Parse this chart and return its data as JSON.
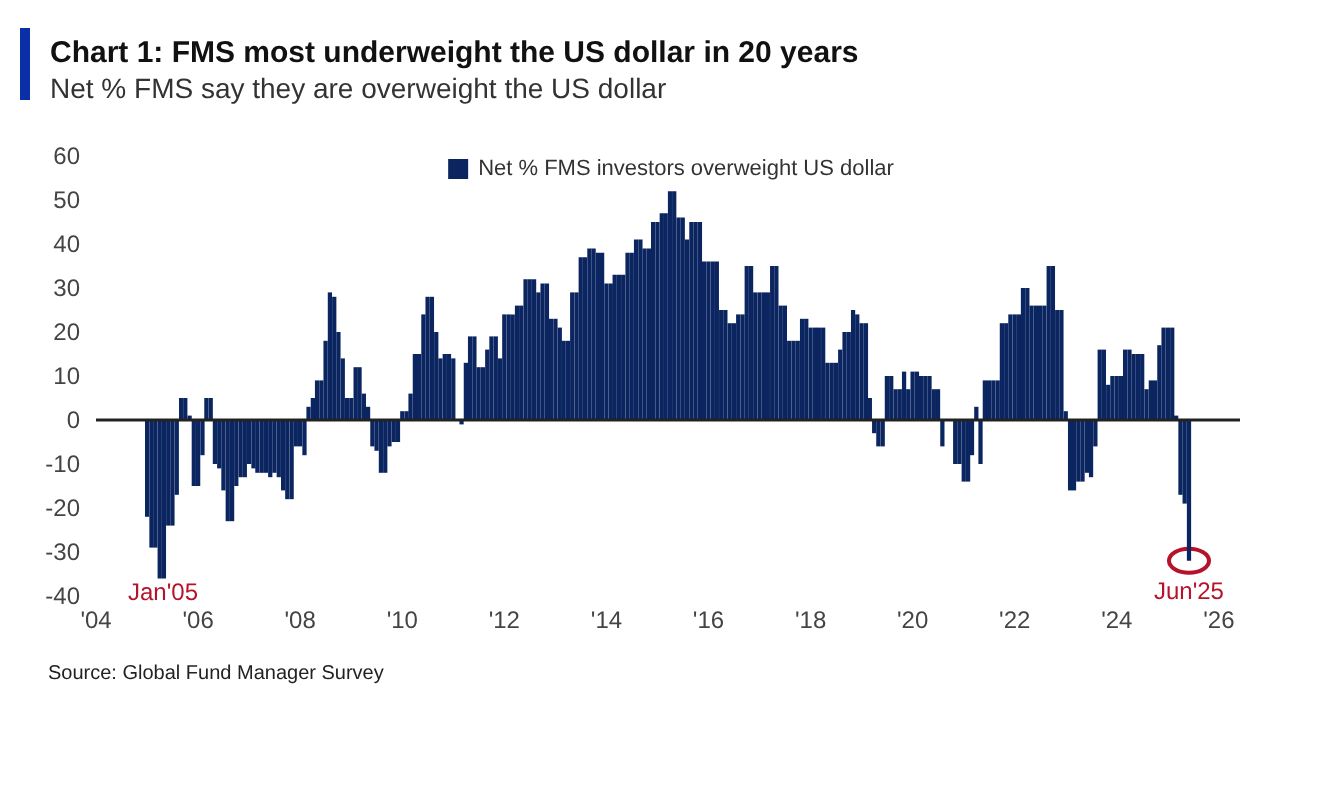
{
  "chart_data": {
    "type": "bar",
    "title": "Chart 1: FMS most underweight the US dollar in 20 years",
    "subtitle": "Net % FMS say they are overweight the US dollar",
    "x": [
      "2005-01",
      "2005-02",
      "2005-03",
      "2005-04",
      "2005-05",
      "2005-06",
      "2005-07",
      "2005-08",
      "2005-09",
      "2005-10",
      "2005-11",
      "2005-12",
      "2006-01",
      "2006-02",
      "2006-03",
      "2006-04",
      "2006-05",
      "2006-06",
      "2006-07",
      "2006-08",
      "2006-09",
      "2006-10",
      "2006-11",
      "2006-12",
      "2007-01",
      "2007-02",
      "2007-03",
      "2007-04",
      "2007-05",
      "2007-06",
      "2007-07",
      "2007-08",
      "2007-09",
      "2007-10",
      "2007-11",
      "2007-12",
      "2008-01",
      "2008-02",
      "2008-03",
      "2008-04",
      "2008-05",
      "2008-06",
      "2008-07",
      "2008-08",
      "2008-09",
      "2008-10",
      "2008-11",
      "2008-12",
      "2009-01",
      "2009-02",
      "2009-03",
      "2009-04",
      "2009-05",
      "2009-06",
      "2009-07",
      "2009-08",
      "2009-09",
      "2009-10",
      "2009-11",
      "2009-12",
      "2010-01",
      "2010-02",
      "2010-03",
      "2010-04",
      "2010-05",
      "2010-06",
      "2010-07",
      "2010-08",
      "2010-09",
      "2010-10",
      "2010-11",
      "2010-12",
      "2011-01",
      "2011-02",
      "2011-03",
      "2011-04",
      "2011-05",
      "2011-06",
      "2011-07",
      "2011-08",
      "2011-09",
      "2011-10",
      "2011-11",
      "2011-12",
      "2012-01",
      "2012-02",
      "2012-03",
      "2012-04",
      "2012-05",
      "2012-06",
      "2012-07",
      "2012-08",
      "2012-09",
      "2012-10",
      "2012-11",
      "2012-12",
      "2013-01",
      "2013-02",
      "2013-03",
      "2013-04",
      "2013-05",
      "2013-06",
      "2013-07",
      "2013-08",
      "2013-09",
      "2013-10",
      "2013-11",
      "2013-12",
      "2014-01",
      "2014-02",
      "2014-03",
      "2014-04",
      "2014-05",
      "2014-06",
      "2014-07",
      "2014-08",
      "2014-09",
      "2014-10",
      "2014-11",
      "2014-12",
      "2015-01",
      "2015-02",
      "2015-03",
      "2015-04",
      "2015-05",
      "2015-06",
      "2015-07",
      "2015-08",
      "2015-09",
      "2015-10",
      "2015-11",
      "2015-12",
      "2016-01",
      "2016-02",
      "2016-03",
      "2016-04",
      "2016-05",
      "2016-06",
      "2016-07",
      "2016-08",
      "2016-09",
      "2016-10",
      "2016-11",
      "2016-12",
      "2017-01",
      "2017-02",
      "2017-03",
      "2017-04",
      "2017-05",
      "2017-06",
      "2017-07",
      "2017-08",
      "2017-09",
      "2017-10",
      "2017-11",
      "2017-12",
      "2018-01",
      "2018-02",
      "2018-03",
      "2018-04",
      "2018-05",
      "2018-06",
      "2018-07",
      "2018-08",
      "2018-09",
      "2018-10",
      "2018-11",
      "2018-12",
      "2019-01",
      "2019-02",
      "2019-03",
      "2019-04",
      "2019-05",
      "2019-06",
      "2019-07",
      "2019-08",
      "2019-09",
      "2019-10",
      "2019-11",
      "2019-12",
      "2020-01",
      "2020-02",
      "2020-03",
      "2020-04",
      "2020-05",
      "2020-06",
      "2020-07",
      "2020-08",
      "2020-09",
      "2020-10",
      "2020-11",
      "2020-12",
      "2021-01",
      "2021-02",
      "2021-03",
      "2021-04",
      "2021-05",
      "2021-06",
      "2021-07",
      "2021-08",
      "2021-09",
      "2021-10",
      "2021-11",
      "2021-12",
      "2022-01",
      "2022-02",
      "2022-03",
      "2022-04",
      "2022-05",
      "2022-06",
      "2022-07",
      "2022-08",
      "2022-09",
      "2022-10",
      "2022-11",
      "2022-12",
      "2023-01",
      "2023-02",
      "2023-03",
      "2023-04",
      "2023-05",
      "2023-06",
      "2023-07",
      "2023-08",
      "2023-09",
      "2023-10",
      "2023-11",
      "2023-12",
      "2024-01",
      "2024-02",
      "2024-03",
      "2024-04",
      "2024-05",
      "2024-06",
      "2024-07",
      "2024-08",
      "2024-09",
      "2024-10",
      "2024-11",
      "2024-12",
      "2025-01",
      "2025-02",
      "2025-03",
      "2025-04",
      "2025-05",
      "2025-06"
    ],
    "series": [
      {
        "name": "Net % FMS investors overweight US dollar",
        "color": "#0b2560",
        "values": [
          -22,
          -29,
          -29,
          -36,
          -36,
          -24,
          -24,
          -17,
          5,
          5,
          1,
          -15,
          -15,
          -8,
          5,
          5,
          -10,
          -11,
          -16,
          -23,
          -23,
          -15,
          -13,
          -13,
          -10,
          -11,
          -12,
          -12,
          -12,
          -13,
          -12,
          -13,
          -16,
          -18,
          -18,
          -6,
          -6,
          -8,
          3,
          5,
          9,
          9,
          18,
          29,
          28,
          20,
          14,
          5,
          5,
          12,
          12,
          6,
          3,
          -6,
          -7,
          -12,
          -12,
          -6,
          -5,
          -5,
          2,
          2,
          6,
          15,
          15,
          24,
          28,
          28,
          20,
          14,
          15,
          15,
          14,
          null,
          -1,
          13,
          19,
          19,
          12,
          12,
          16,
          19,
          19,
          14,
          24,
          24,
          24,
          26,
          26,
          32,
          32,
          32,
          29,
          31,
          31,
          23,
          23,
          21,
          18,
          18,
          29,
          29,
          37,
          37,
          39,
          39,
          38,
          38,
          31,
          31,
          33,
          33,
          33,
          38,
          38,
          41,
          41,
          39,
          39,
          45,
          45,
          47,
          47,
          52,
          52,
          46,
          46,
          41,
          45,
          45,
          45,
          36,
          36,
          36,
          36,
          25,
          25,
          22,
          22,
          24,
          24,
          35,
          35,
          29,
          29,
          29,
          29,
          35,
          35,
          26,
          26,
          18,
          18,
          18,
          23,
          23,
          21,
          21,
          21,
          21,
          13,
          13,
          13,
          16,
          20,
          20,
          25,
          24,
          22,
          22,
          5,
          -3,
          -6,
          -6,
          10,
          10,
          7,
          7,
          11,
          7,
          11,
          11,
          10,
          10,
          10,
          7,
          7,
          -6,
          null,
          null,
          -10,
          -10,
          -14,
          -14,
          -8,
          3,
          -10,
          9,
          9,
          9,
          9,
          22,
          22,
          24,
          24,
          24,
          30,
          30,
          26,
          26,
          26,
          26,
          35,
          35,
          25,
          25,
          2,
          -16,
          -16,
          -14,
          -14,
          -12,
          -13,
          -6,
          16,
          16,
          8,
          10,
          10,
          10,
          16,
          16,
          15,
          15,
          15,
          7,
          9,
          9,
          17,
          21,
          21,
          21,
          1,
          -17,
          -19,
          -32
        ]
      }
    ],
    "xlim": [
      "2004",
      "2026-06"
    ],
    "xticks": [
      {
        "value": "2004",
        "label": "'04"
      },
      {
        "value": "2006",
        "label": "'06"
      },
      {
        "value": "2008",
        "label": "'08"
      },
      {
        "value": "2010",
        "label": "'10"
      },
      {
        "value": "2012",
        "label": "'12"
      },
      {
        "value": "2014",
        "label": "'14"
      },
      {
        "value": "2016",
        "label": "'16"
      },
      {
        "value": "2018",
        "label": "'18"
      },
      {
        "value": "2020",
        "label": "'20"
      },
      {
        "value": "2022",
        "label": "'22"
      },
      {
        "value": "2024",
        "label": "'24"
      },
      {
        "value": "2026",
        "label": "'26"
      }
    ],
    "ylim": [
      -40,
      60
    ],
    "yticks": [
      -40,
      -30,
      -20,
      -10,
      0,
      10,
      20,
      30,
      40,
      50,
      60
    ],
    "ref_lines": [
      {
        "axis": "y",
        "value": 0,
        "color": "#222222"
      }
    ],
    "legend": "top",
    "grid": false,
    "annotations": [
      "Jan'05",
      {
        "text": "Jun'25",
        "x": "2025-06",
        "y": -32
      },
      "Source: Global Fund Manager Survey"
    ]
  }
}
